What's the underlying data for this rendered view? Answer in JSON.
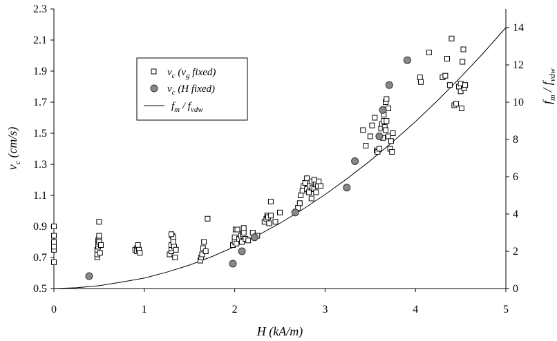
{
  "chart_data": {
    "type": "scatter",
    "xlabel": "H (kA/m)",
    "ylabel_left": {
      "base": "v",
      "sub": "c",
      "rest": " (cm/s)"
    },
    "ylabel_right": {
      "base1": "f",
      "sub1": "m",
      "mid": " / ",
      "base2": "f",
      "sub2": "vdw"
    },
    "xlim": [
      0,
      5
    ],
    "ylim_left": [
      0.5,
      2.3
    ],
    "ylim_right": [
      0,
      15
    ],
    "x_ticks": [
      "0",
      "1",
      "2",
      "3",
      "4",
      "5"
    ],
    "y_left_ticks": [
      "0.5",
      "0.7",
      "0.9",
      "1.1",
      "1.3",
      "1.5",
      "1.7",
      "1.9",
      "2.1",
      "2.3"
    ],
    "y_right_ticks": [
      "0",
      "2",
      "4",
      "6",
      "8",
      "10",
      "12",
      "14"
    ],
    "legend_position": "top-left",
    "legend": [
      {
        "kind": "square",
        "base": "v",
        "sub": "c",
        "paren_open": " (",
        "base2": "v",
        "sub2": "g",
        "rest": " fixed)"
      },
      {
        "kind": "circle",
        "base": "v",
        "sub": "c",
        "rest": " (H fixed)"
      },
      {
        "kind": "line",
        "base1": "f",
        "sub1": "m",
        "mid": " / ",
        "base2": "f",
        "sub2": "vdw"
      }
    ],
    "series": [
      {
        "name": "vc (vg fixed)",
        "marker": "open-square",
        "axis": "left",
        "points": [
          [
            0.0,
            0.67
          ],
          [
            0.0,
            0.75
          ],
          [
            0.0,
            0.77
          ],
          [
            0.0,
            0.8
          ],
          [
            0.0,
            0.84
          ],
          [
            0.0,
            0.9
          ],
          [
            0.48,
            0.7
          ],
          [
            0.48,
            0.72
          ],
          [
            0.48,
            0.75
          ],
          [
            0.49,
            0.77
          ],
          [
            0.49,
            0.79
          ],
          [
            0.49,
            0.81
          ],
          [
            0.5,
            0.82
          ],
          [
            0.5,
            0.84
          ],
          [
            0.5,
            0.8
          ],
          [
            0.51,
            0.73
          ],
          [
            0.52,
            0.78
          ],
          [
            0.5,
            0.93
          ],
          [
            0.9,
            0.75
          ],
          [
            0.92,
            0.76
          ],
          [
            0.92,
            0.74
          ],
          [
            0.93,
            0.78
          ],
          [
            0.94,
            0.75
          ],
          [
            0.95,
            0.73
          ],
          [
            1.28,
            0.72
          ],
          [
            1.3,
            0.74
          ],
          [
            1.3,
            0.76
          ],
          [
            1.3,
            0.78
          ],
          [
            1.31,
            0.84
          ],
          [
            1.32,
            0.83
          ],
          [
            1.32,
            0.8
          ],
          [
            1.33,
            0.77
          ],
          [
            1.34,
            0.7
          ],
          [
            1.35,
            0.75
          ],
          [
            1.3,
            0.85
          ],
          [
            1.62,
            0.68
          ],
          [
            1.63,
            0.7
          ],
          [
            1.64,
            0.72
          ],
          [
            1.65,
            0.76
          ],
          [
            1.66,
            0.8
          ],
          [
            1.68,
            0.74
          ],
          [
            1.7,
            0.95
          ],
          [
            1.98,
            0.78
          ],
          [
            2.0,
            0.8
          ],
          [
            2.0,
            0.83
          ],
          [
            2.01,
            0.88
          ],
          [
            2.02,
            0.79
          ],
          [
            2.03,
            0.88
          ],
          [
            2.05,
            0.82
          ],
          [
            2.07,
            0.84
          ],
          [
            2.08,
            0.8
          ],
          [
            2.09,
            0.85
          ],
          [
            2.1,
            0.86
          ],
          [
            2.1,
            0.89
          ],
          [
            2.12,
            0.82
          ],
          [
            2.15,
            0.81
          ],
          [
            2.2,
            0.86
          ],
          [
            2.25,
            0.84
          ],
          [
            2.33,
            0.93
          ],
          [
            2.35,
            0.95
          ],
          [
            2.36,
            0.97
          ],
          [
            2.37,
            0.96
          ],
          [
            2.38,
            0.92
          ],
          [
            2.4,
            0.97
          ],
          [
            2.4,
            1.06
          ],
          [
            2.45,
            0.93
          ],
          [
            2.5,
            0.99
          ],
          [
            2.7,
            1.02
          ],
          [
            2.72,
            1.05
          ],
          [
            2.73,
            1.1
          ],
          [
            2.75,
            1.13
          ],
          [
            2.76,
            1.16
          ],
          [
            2.78,
            1.18
          ],
          [
            2.8,
            1.21
          ],
          [
            2.8,
            1.14
          ],
          [
            2.82,
            1.12
          ],
          [
            2.83,
            1.16
          ],
          [
            2.85,
            1.19
          ],
          [
            2.85,
            1.08
          ],
          [
            2.86,
            1.15
          ],
          [
            2.88,
            1.2
          ],
          [
            2.88,
            1.14
          ],
          [
            2.9,
            1.17
          ],
          [
            2.9,
            1.12
          ],
          [
            2.92,
            1.16
          ],
          [
            2.93,
            1.19
          ],
          [
            2.95,
            1.16
          ],
          [
            3.42,
            1.52
          ],
          [
            3.45,
            1.42
          ],
          [
            3.5,
            1.48
          ],
          [
            3.52,
            1.55
          ],
          [
            3.55,
            1.6
          ],
          [
            3.57,
            1.39
          ],
          [
            3.58,
            1.38
          ],
          [
            3.6,
            1.4
          ],
          [
            3.62,
            1.53
          ],
          [
            3.63,
            1.56
          ],
          [
            3.64,
            1.47
          ],
          [
            3.65,
            1.62
          ],
          [
            3.65,
            1.58
          ],
          [
            3.66,
            1.54
          ],
          [
            3.67,
            1.52
          ],
          [
            3.67,
            1.7
          ],
          [
            3.68,
            1.72
          ],
          [
            3.68,
            1.58
          ],
          [
            3.7,
            1.66
          ],
          [
            3.7,
            1.48
          ],
          [
            3.72,
            1.4
          ],
          [
            3.73,
            1.45
          ],
          [
            3.74,
            1.38
          ],
          [
            3.75,
            1.5
          ],
          [
            4.05,
            1.86
          ],
          [
            4.06,
            1.83
          ],
          [
            4.15,
            2.02
          ],
          [
            4.3,
            1.86
          ],
          [
            4.33,
            1.87
          ],
          [
            4.35,
            1.98
          ],
          [
            4.38,
            1.81
          ],
          [
            4.4,
            2.11
          ],
          [
            4.43,
            1.68
          ],
          [
            4.45,
            1.69
          ],
          [
            4.48,
            1.8
          ],
          [
            4.5,
            1.77
          ],
          [
            4.5,
            1.82
          ],
          [
            4.51,
            1.66
          ],
          [
            4.52,
            1.96
          ],
          [
            4.53,
            2.04
          ],
          [
            4.54,
            1.79
          ],
          [
            4.55,
            1.81
          ]
        ]
      },
      {
        "name": "vc (H fixed)",
        "marker": "filled-circle",
        "axis": "left",
        "points": [
          [
            0.39,
            0.58
          ],
          [
            1.98,
            0.66
          ],
          [
            2.08,
            0.74
          ],
          [
            2.22,
            0.83
          ],
          [
            2.67,
            0.99
          ],
          [
            3.24,
            1.15
          ],
          [
            3.33,
            1.32
          ],
          [
            3.6,
            1.48
          ],
          [
            3.64,
            1.65
          ],
          [
            3.71,
            1.81
          ],
          [
            3.91,
            1.97
          ]
        ]
      },
      {
        "name": "fm / fvdw",
        "marker": "line",
        "axis": "right",
        "points": [
          [
            0.0,
            0.0
          ],
          [
            0.25,
            0.04
          ],
          [
            0.5,
            0.15
          ],
          [
            0.75,
            0.35
          ],
          [
            1.0,
            0.56
          ],
          [
            1.25,
            0.88
          ],
          [
            1.5,
            1.26
          ],
          [
            1.75,
            1.72
          ],
          [
            2.0,
            2.25
          ],
          [
            2.25,
            2.84
          ],
          [
            2.5,
            3.5
          ],
          [
            2.75,
            4.24
          ],
          [
            3.0,
            5.04
          ],
          [
            3.25,
            5.92
          ],
          [
            3.5,
            6.86
          ],
          [
            3.75,
            7.88
          ],
          [
            4.0,
            8.96
          ],
          [
            4.25,
            10.11
          ],
          [
            4.5,
            11.34
          ],
          [
            4.75,
            12.63
          ],
          [
            5.0,
            14.0
          ]
        ]
      }
    ]
  }
}
